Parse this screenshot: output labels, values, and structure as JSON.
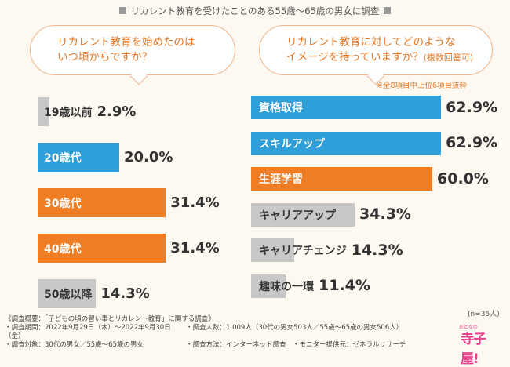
{
  "header": "リカレント教育を受けたことのある55歳～65歳の男女に調査",
  "colors": {
    "blue": "#2e9fd9",
    "orange": "#ee7d24",
    "gray": "#c8c8c8",
    "bubble_border": "#f0b48a",
    "accent_text": "#e67825"
  },
  "left": {
    "question_line1": "リカレント教育を始めたのは",
    "question_line2": "いつ頃からですか？"
  },
  "right": {
    "question_line1": "リカレント教育に対してどのような",
    "question_line2": "イメージを持っていますか？",
    "question_suffix": "(複数回答可)",
    "note": "※全8項目中上位6項目抜粋"
  },
  "chart_data": [
    {
      "type": "bar",
      "orientation": "horizontal",
      "title": "リカレント教育を始めたのはいつ頃からですか？",
      "categories": [
        "19歳以前",
        "20歳代",
        "30歳代",
        "40歳代",
        "50歳以降"
      ],
      "values": [
        2.9,
        20.0,
        31.4,
        31.4,
        14.3
      ],
      "value_labels": [
        "2.9%",
        "20.0%",
        "31.4%",
        "31.4%",
        "14.3%"
      ],
      "unit": "%",
      "xlim": [
        0,
        100
      ]
    },
    {
      "type": "bar",
      "orientation": "horizontal",
      "title": "リカレント教育に対してどのようなイメージを持っていますか？(複数回答可)",
      "categories": [
        "資格取得",
        "スキルアップ",
        "生涯学習",
        "キャリアアップ",
        "キャリアチェンジ",
        "趣味の一環"
      ],
      "values": [
        62.9,
        62.9,
        60.0,
        34.3,
        14.3,
        11.4
      ],
      "value_labels": [
        "62.9%",
        "62.9%",
        "60.0%",
        "34.3%",
        "14.3%",
        "11.4%"
      ],
      "unit": "%",
      "xlim": [
        0,
        100
      ]
    }
  ],
  "n_note": "(n=35人)",
  "footer": {
    "r1": "《調査概要：「子どもの頃の習い事とリカレント教育」に関する調査》",
    "r2a": "・調査期間：2022年9月29日（木）～2022年9月30日（金）",
    "r2b": "・調査人数：1,009人（30代の男女503人／55歳～65歳の男女506人）",
    "r3a": "・調査対象：30代の男女／55歳～65歳の男女",
    "r3b": "・調査方法：インターネット調査　・モニター提供元：ゼネラルリサーチ"
  },
  "logo": {
    "main": "寺子屋!",
    "sub": "おとなの"
  }
}
